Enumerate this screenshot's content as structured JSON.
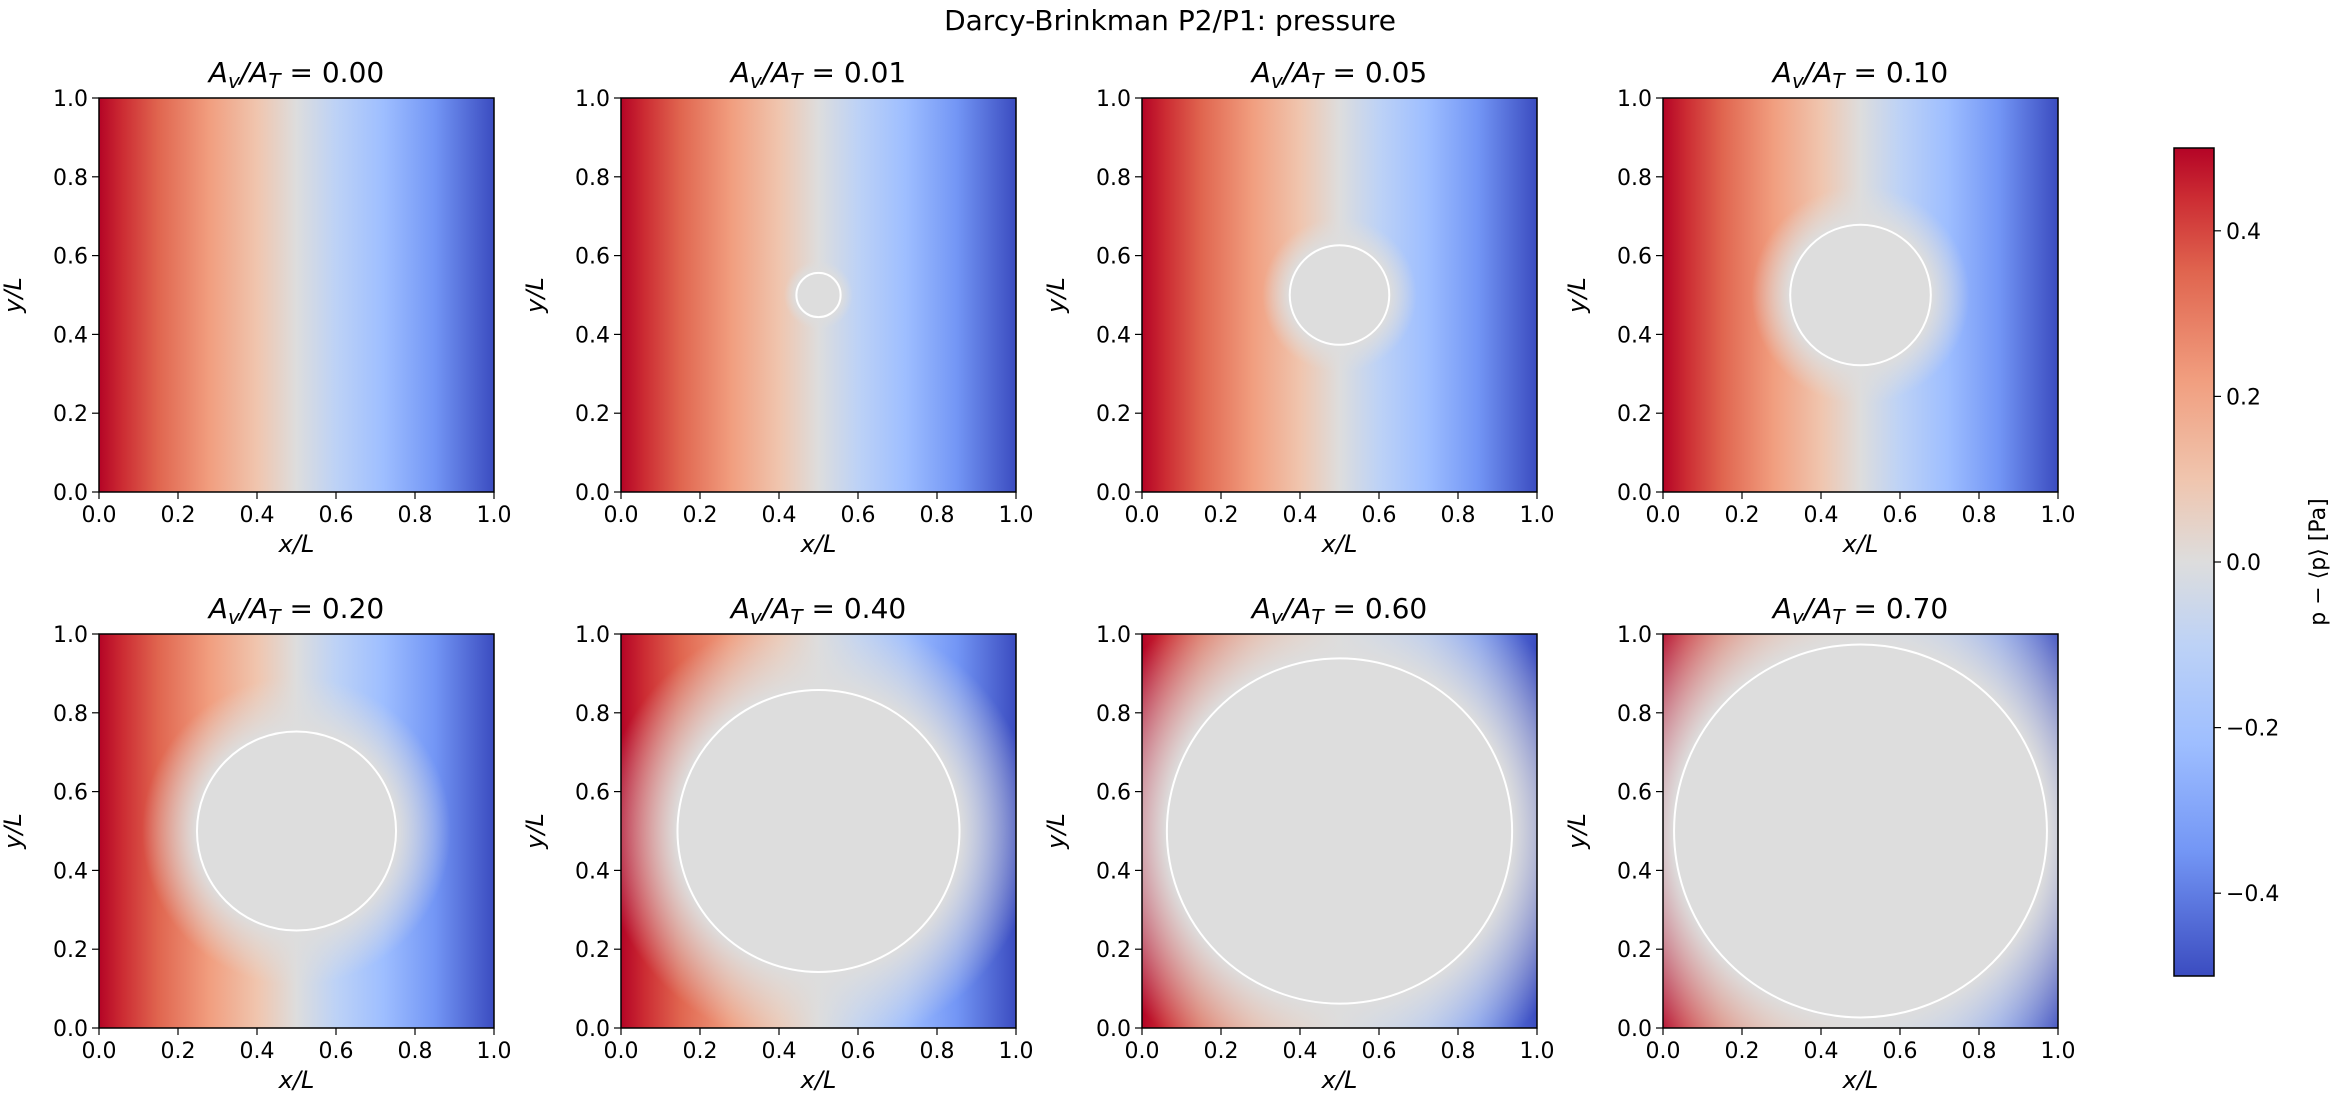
{
  "chart_data": {
    "type": "heatmap",
    "title": "Darcy-Brinkman P2/P1: pressure",
    "xlabel": "x/L",
    "ylabel": "y/L",
    "xlim": [
      0.0,
      1.0
    ],
    "ylim": [
      0.0,
      1.0
    ],
    "xticks": [
      "0.0",
      "0.2",
      "0.4",
      "0.6",
      "0.8",
      "1.0"
    ],
    "yticks": [
      "0.0",
      "0.2",
      "0.4",
      "0.6",
      "0.8",
      "1.0"
    ],
    "colormap": "coolwarm",
    "colorbar": {
      "label": "p − ⟨p⟩ [Pa]",
      "range": [
        -0.5,
        0.5
      ],
      "ticks": [
        {
          "value": 0.4,
          "label": "0.4"
        },
        {
          "value": 0.2,
          "label": "0.2"
        },
        {
          "value": 0.0,
          "label": "0.0"
        },
        {
          "value": -0.2,
          "label": "−0.2"
        },
        {
          "value": -0.4,
          "label": "−0.4"
        }
      ]
    },
    "panels": [
      {
        "title_prefix": "A",
        "title_sub1": "v",
        "title_mid": "/A",
        "title_sub2": "T",
        "title_value": " = 0.00",
        "area_fraction": 0.0,
        "circle_center": [
          0.5,
          0.5
        ],
        "circle_radius": 0.0
      },
      {
        "title_prefix": "A",
        "title_sub1": "v",
        "title_mid": "/A",
        "title_sub2": "T",
        "title_value": " = 0.01",
        "area_fraction": 0.01,
        "circle_center": [
          0.5,
          0.5
        ],
        "circle_radius": 0.056
      },
      {
        "title_prefix": "A",
        "title_sub1": "v",
        "title_mid": "/A",
        "title_sub2": "T",
        "title_value": " = 0.05",
        "area_fraction": 0.05,
        "circle_center": [
          0.5,
          0.5
        ],
        "circle_radius": 0.126
      },
      {
        "title_prefix": "A",
        "title_sub1": "v",
        "title_mid": "/A",
        "title_sub2": "T",
        "title_value": " = 0.10",
        "area_fraction": 0.1,
        "circle_center": [
          0.5,
          0.5
        ],
        "circle_radius": 0.178
      },
      {
        "title_prefix": "A",
        "title_sub1": "v",
        "title_mid": "/A",
        "title_sub2": "T",
        "title_value": " = 0.20",
        "area_fraction": 0.2,
        "circle_center": [
          0.5,
          0.5
        ],
        "circle_radius": 0.252
      },
      {
        "title_prefix": "A",
        "title_sub1": "v",
        "title_mid": "/A",
        "title_sub2": "T",
        "title_value": " = 0.40",
        "area_fraction": 0.4,
        "circle_center": [
          0.5,
          0.5
        ],
        "circle_radius": 0.357
      },
      {
        "title_prefix": "A",
        "title_sub1": "v",
        "title_mid": "/A",
        "title_sub2": "T",
        "title_value": " = 0.60",
        "area_fraction": 0.6,
        "circle_center": [
          0.5,
          0.5
        ],
        "circle_radius": 0.437
      },
      {
        "title_prefix": "A",
        "title_sub1": "v",
        "title_mid": "/A",
        "title_sub2": "T",
        "title_value": " = 0.70",
        "area_fraction": 0.7,
        "circle_center": [
          0.5,
          0.5
        ],
        "circle_radius": 0.472
      }
    ],
    "field_description": "pressure decreases left to right; inclusion is zero pressure",
    "colors": {
      "high": "#b40426",
      "mid": "#dddddd",
      "low": "#3b4cc0",
      "inclusion_outline": "#ffffff"
    }
  }
}
